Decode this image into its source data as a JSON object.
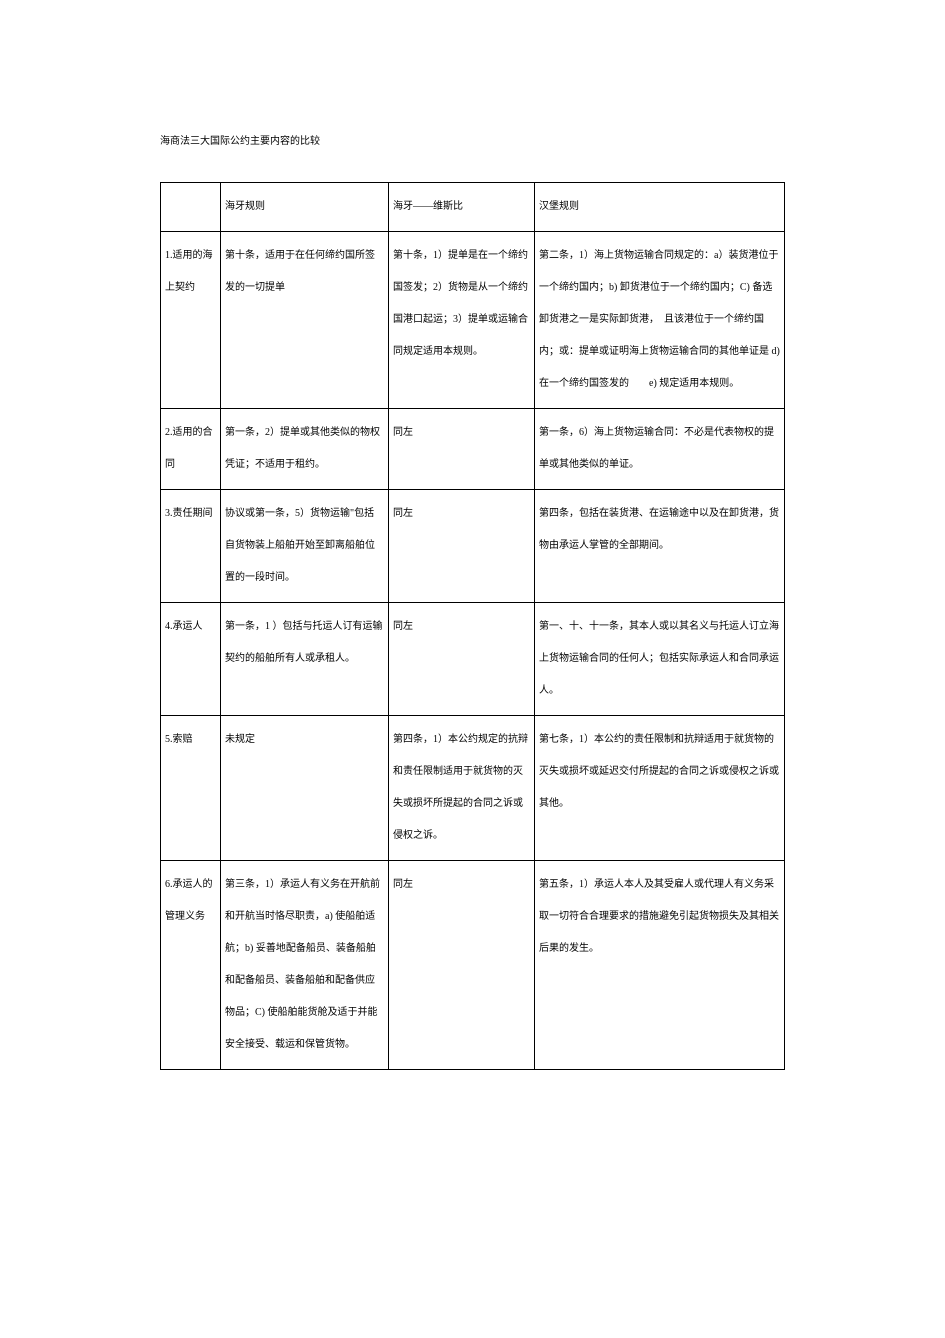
{
  "title": "海商法三大国际公约主要内容的比较",
  "table": {
    "columns": [
      "",
      "海牙规则",
      "海牙——维斯比",
      "汉堡规则"
    ],
    "rows": [
      {
        "label": "1.适用的海上契约",
        "c1": "第十条，适用于在任何缔约国所签发的一切提单",
        "c2": "第十条，1）提单是在一个缔约国签发；2）货物是从一个缔约国港口起运；3）提单或运输合同规定适用本规则。",
        "c3": "第二条，1）海上货物运输合同规定的：a）装货港位于一个缔约国内；b) 卸货港位于一个缔约国内；C) 备选卸货港之一是实际卸货港，　且该港位于一个缔约国内；或：提单或证明海上货物运输合同的其他单证是 d) 在一个缔约国签发的　　e) 规定适用本规则。"
      },
      {
        "label": "2.适用的合同",
        "c1": "第一条，2）提单或其他类似的物权凭证；不适用于租约。",
        "c2": "同左",
        "c3": "第一条，6）海上货物运输合同：不必是代表物权的提单或其他类似的单证。"
      },
      {
        "label": "3.责任期间",
        "c1": "协议或第一条，5）货物运输\"包括自货物装上船舶开始至卸离船舶位置的一段时间。",
        "c2": "同左",
        "c3": "第四条，包括在装货港、在运输途中以及在卸货港，货物由承运人掌管的全部期间。"
      },
      {
        "label": "4.承运人",
        "c1": "第一条，1 ）包括与托运人订有运输契约的船舶所有人或承租人。",
        "c2": "同左",
        "c3": "第一、十、十一条，其本人或以其名义与托运人订立海上货物运输合同的任何人；包括实际承运人和合同承运人。"
      },
      {
        "label": "5.索赔",
        "c1": "未规定",
        "c2": "第四条，1）本公约规定的抗辩和责任限制适用于就货物的灭失或损坏所提起的合同之诉或侵权之诉。",
        "c3": "第七条，1）本公约的责任限制和抗辩适用于就货物的灭失或损坏或延迟交付所提起的合同之诉或侵权之诉或其他。"
      },
      {
        "label": "6.承运人的管理义务",
        "c1": "第三条，1）承运人有义务在开航前和开航当时恪尽职责，a) 使船舶适航；b) 妥善地配备船员、装备船舶和配备船员、装备船舶和配备供应物品；C) 使船舶能货舱及适于并能安全接受、载运和保管货物。",
        "c2": "同左",
        "c3": "第五条，1）承运人本人及其受雇人或代理人有义务采取一切符合合理要求的措施避免引起货物损失及其相关后果的发生。"
      }
    ]
  }
}
